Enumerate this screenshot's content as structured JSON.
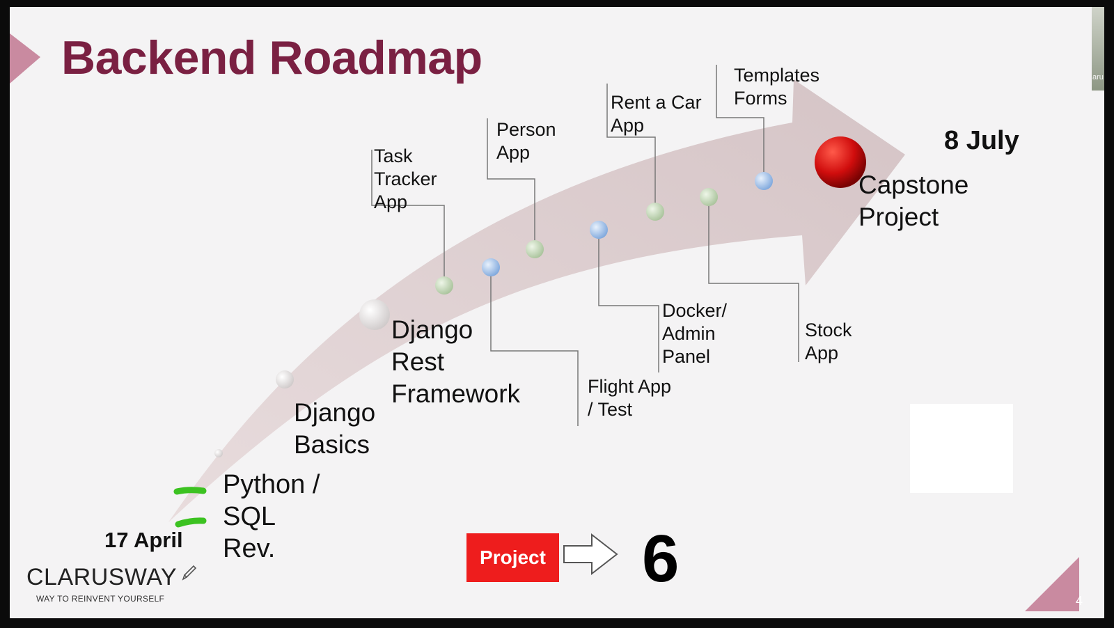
{
  "slide": {
    "title": "Backend Roadmap",
    "start_date": "17 April",
    "end_date": "8 July",
    "page_number": "4",
    "corner_thumb_text": "aru"
  },
  "milestones_large": [
    {
      "id": "python",
      "label": "Python /\nSQL\nRev."
    },
    {
      "id": "django-basics",
      "label": "Django\nBasics"
    },
    {
      "id": "django-rest",
      "label": "Django\nRest\nFramework"
    },
    {
      "id": "capstone",
      "label": "Capstone\nProject"
    }
  ],
  "milestones_small": [
    {
      "id": "task-tracker",
      "label": "Task\nTracker\nApp"
    },
    {
      "id": "person-app",
      "label": "Person\nApp"
    },
    {
      "id": "rent-a-car",
      "label": "Rent a Car\nApp"
    },
    {
      "id": "templates-forms",
      "label": "Templates\nForms"
    },
    {
      "id": "flight-app",
      "label": "Flight App\n/ Test"
    },
    {
      "id": "docker-admin",
      "label": "Docker/\nAdmin\nPanel"
    },
    {
      "id": "stock-app",
      "label": "Stock\nApp"
    }
  ],
  "project_counter": {
    "button_label": "Project",
    "count": "6"
  },
  "logo": {
    "name": "CLARUSWAY",
    "tagline": "WAY TO REINVENT YOURSELF"
  },
  "colors": {
    "title": "#7a2042",
    "arrow": "#d8c7ca",
    "accent_triangle": "#c98aa0",
    "project_box": "#ee1d1d",
    "dot_green": "#c9dfbd",
    "dot_blue": "#a8c7ef",
    "dot_red": "#c40c0c",
    "check_mark": "#3cc221"
  },
  "icons": [
    "pen-icon",
    "right-arrow-icon"
  ]
}
